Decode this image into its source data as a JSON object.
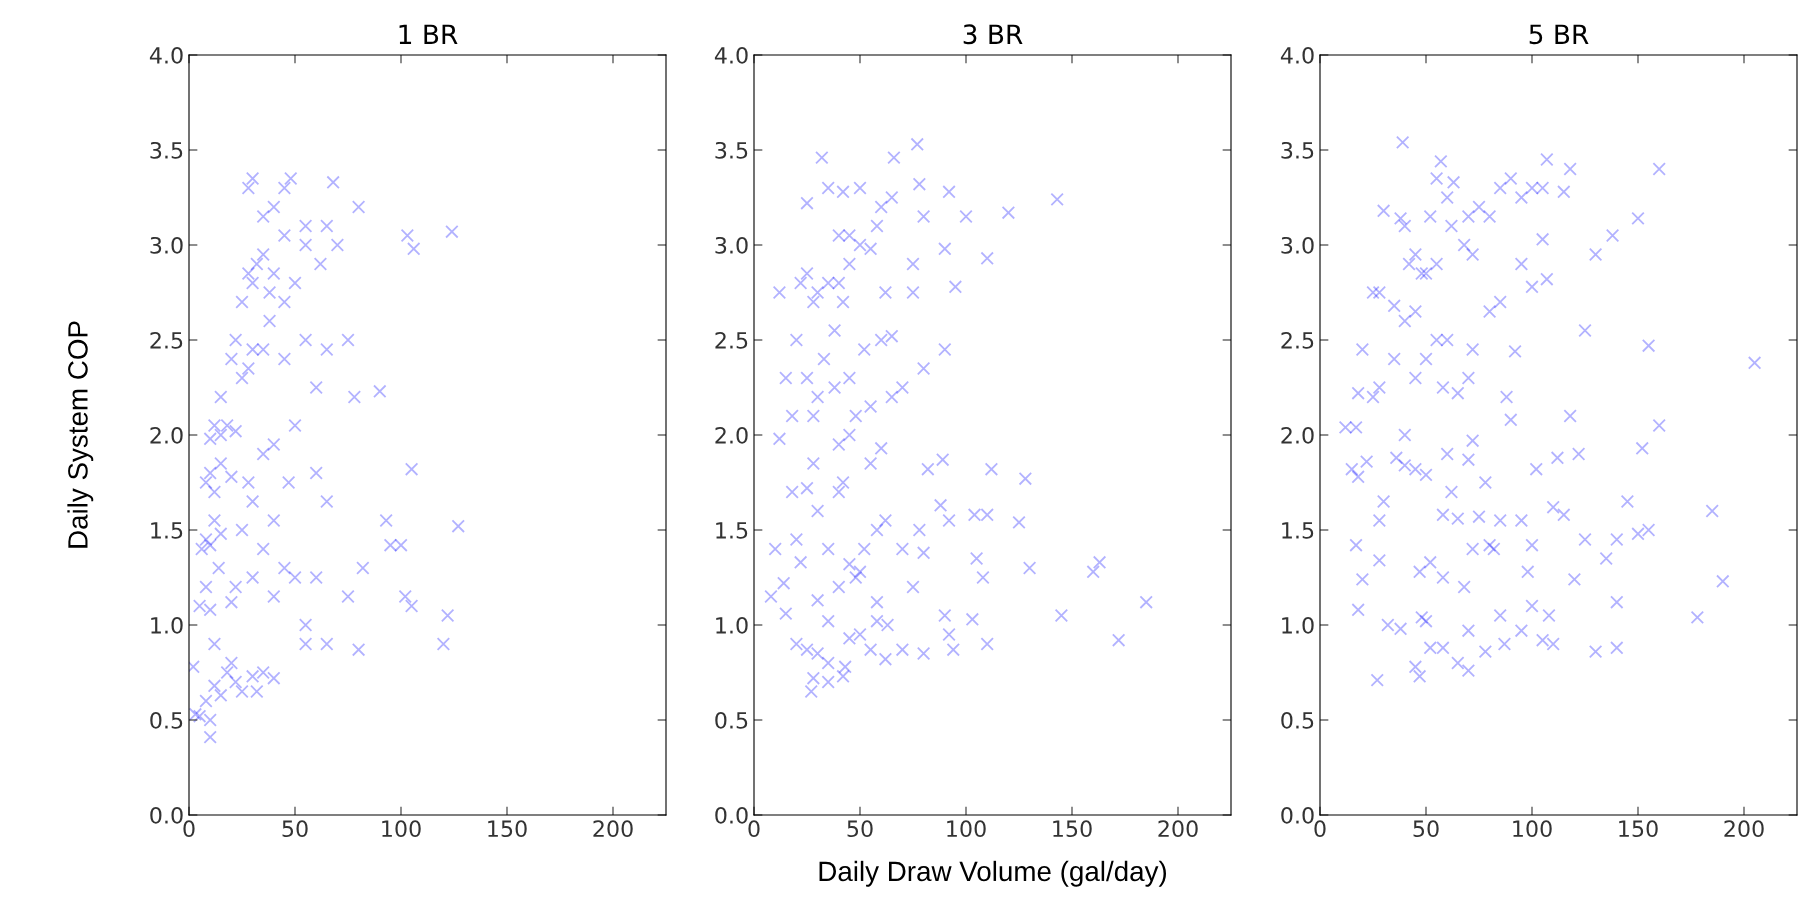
{
  "chart_data": [
    {
      "type": "scatter",
      "title": "1 BR",
      "ylabel": "Daily System COP",
      "xlim": [
        0,
        225
      ],
      "ylim": [
        0,
        4
      ],
      "xticks": [
        0,
        50,
        100,
        150,
        200
      ],
      "yticks": [
        {
          "value": 0,
          "label": "0.0"
        },
        0.5,
        {
          "value": 1,
          "label": "1.0"
        },
        1.5,
        {
          "value": 2,
          "label": "2.0"
        },
        2.5,
        {
          "value": 3,
          "label": "3.0"
        },
        3.5,
        {
          "value": 4,
          "label": "4.0"
        }
      ],
      "marker": "cross",
      "grid": false,
      "legend": false,
      "series": [
        {
          "color": "#0000ff",
          "x": [
            3,
            5,
            2,
            8,
            10,
            10,
            12,
            15,
            18,
            20,
            22,
            25,
            30,
            32,
            35,
            40,
            5,
            8,
            10,
            12,
            14,
            20,
            22,
            30,
            40,
            45,
            50,
            55,
            55,
            60,
            65,
            80,
            82,
            75,
            95,
            102,
            105,
            120,
            122,
            127,
            100,
            93,
            6,
            8,
            10,
            12,
            15,
            25,
            35,
            40,
            60,
            65,
            105,
            90,
            8,
            10,
            12,
            15,
            20,
            28,
            30,
            40,
            47,
            10,
            12,
            15,
            18,
            22,
            35,
            50,
            15,
            20,
            22,
            25,
            28,
            30,
            35,
            38,
            45,
            55,
            65,
            75,
            78,
            60,
            25,
            28,
            30,
            32,
            35,
            38,
            40,
            45,
            50,
            55,
            62,
            70,
            45,
            55,
            65,
            80,
            103,
            106,
            124,
            28,
            30,
            45,
            48,
            68,
            35,
            40
          ],
          "values": [
            0.53,
            0.52,
            0.78,
            0.6,
            0.41,
            0.5,
            0.68,
            0.63,
            0.75,
            0.8,
            0.7,
            0.65,
            0.73,
            0.65,
            0.75,
            0.72,
            1.1,
            1.2,
            1.08,
            0.9,
            1.3,
            1.12,
            1.2,
            1.25,
            1.15,
            1.3,
            1.25,
            1.0,
            0.9,
            1.25,
            0.9,
            0.87,
            1.3,
            1.15,
            1.42,
            1.15,
            1.1,
            0.9,
            1.05,
            1.52,
            1.42,
            1.55,
            1.4,
            1.45,
            1.42,
            1.55,
            1.48,
            1.5,
            1.4,
            1.55,
            1.8,
            1.65,
            1.82,
            2.23,
            1.75,
            1.8,
            1.7,
            1.85,
            1.78,
            1.75,
            1.65,
            1.95,
            1.75,
            1.98,
            2.05,
            2.0,
            2.05,
            2.02,
            1.9,
            2.05,
            2.2,
            2.4,
            2.5,
            2.3,
            2.35,
            2.45,
            2.45,
            2.6,
            2.4,
            2.5,
            2.45,
            2.5,
            2.2,
            2.25,
            2.7,
            2.85,
            2.8,
            2.9,
            2.95,
            2.75,
            2.85,
            2.7,
            2.8,
            3.0,
            2.9,
            3.0,
            3.05,
            3.1,
            3.1,
            3.2,
            3.05,
            2.98,
            3.07,
            3.3,
            3.35,
            3.3,
            3.35,
            3.33,
            3.15,
            3.2
          ]
        }
      ]
    },
    {
      "type": "scatter",
      "title": "3 BR",
      "xlabel": "Daily Draw Volume (gal/day)",
      "xlim": [
        0,
        225
      ],
      "ylim": [
        0,
        4
      ],
      "xticks": [
        0,
        50,
        100,
        150,
        200
      ],
      "yticks": [
        {
          "value": 0,
          "label": "0.0"
        },
        0.5,
        {
          "value": 1,
          "label": "1.0"
        },
        1.5,
        {
          "value": 2,
          "label": "2.0"
        },
        2.5,
        {
          "value": 3,
          "label": "3.0"
        },
        3.5,
        {
          "value": 4,
          "label": "4.0"
        }
      ],
      "marker": "cross",
      "grid": false,
      "legend": false,
      "series": [
        {
          "color": "#0000ff",
          "x": [
            12,
            12,
            10,
            8,
            14,
            15,
            18,
            20,
            22,
            25,
            28,
            30,
            35,
            40,
            42,
            18,
            15,
            20,
            25,
            28,
            30,
            33,
            38,
            45,
            48,
            55,
            65,
            70,
            80,
            90,
            22,
            25,
            28,
            30,
            35,
            38,
            40,
            42,
            45,
            40,
            45,
            50,
            55,
            58,
            60,
            65,
            75,
            80,
            90,
            92,
            100,
            75,
            62,
            60,
            52,
            65,
            25,
            32,
            35,
            42,
            50,
            66,
            77,
            78,
            120,
            143,
            110,
            95,
            40,
            45,
            55,
            60,
            48,
            50,
            52,
            58,
            62,
            70,
            75,
            78,
            80,
            88,
            92,
            82,
            89,
            104,
            110,
            112,
            105,
            108,
            125,
            130,
            128,
            145,
            160,
            163,
            172,
            185,
            110,
            103,
            20,
            25,
            27,
            28,
            30,
            35,
            35,
            42,
            43,
            45,
            50,
            55,
            58,
            62,
            63,
            70,
            80,
            92,
            94,
            90,
            30,
            35,
            40,
            45,
            58
          ],
          "values": [
            2.75,
            1.98,
            1.4,
            1.15,
            1.22,
            1.06,
            1.7,
            1.45,
            1.33,
            1.72,
            1.85,
            1.6,
            1.4,
            1.7,
            1.75,
            2.1,
            2.3,
            2.5,
            2.3,
            2.1,
            2.2,
            2.4,
            2.25,
            2.3,
            2.1,
            2.15,
            2.2,
            2.25,
            2.35,
            2.45,
            2.8,
            2.85,
            2.7,
            2.75,
            2.8,
            2.55,
            2.8,
            2.7,
            2.9,
            3.05,
            3.05,
            3.0,
            2.98,
            3.1,
            3.2,
            3.25,
            2.9,
            3.15,
            2.98,
            3.28,
            3.15,
            2.75,
            2.75,
            2.5,
            2.45,
            2.52,
            3.22,
            3.46,
            3.3,
            3.28,
            3.3,
            3.46,
            3.53,
            3.32,
            3.17,
            3.24,
            2.93,
            2.78,
            1.95,
            2.0,
            1.85,
            1.93,
            1.25,
            1.28,
            1.4,
            1.5,
            1.55,
            1.4,
            1.2,
            1.5,
            1.38,
            1.63,
            1.55,
            1.82,
            1.87,
            1.58,
            1.58,
            1.82,
            1.35,
            1.25,
            1.54,
            1.3,
            1.77,
            1.05,
            1.28,
            1.33,
            0.92,
            1.12,
            0.9,
            1.03,
            0.9,
            0.87,
            0.65,
            0.72,
            0.85,
            0.8,
            0.7,
            0.73,
            0.78,
            0.93,
            0.95,
            0.87,
            1.02,
            0.82,
            1.0,
            0.87,
            0.85,
            0.95,
            0.87,
            1.05,
            1.13,
            1.02,
            1.2,
            1.32,
            1.12
          ]
        }
      ]
    },
    {
      "type": "scatter",
      "title": "5 BR",
      "xlim": [
        0,
        225
      ],
      "ylim": [
        0,
        4
      ],
      "xticks": [
        0,
        50,
        100,
        150,
        200
      ],
      "yticks": [
        {
          "value": 0,
          "label": "0.0"
        },
        0.5,
        {
          "value": 1,
          "label": "1.0"
        },
        1.5,
        {
          "value": 2,
          "label": "2.0"
        },
        2.5,
        {
          "value": 3,
          "label": "3.0"
        },
        3.5,
        {
          "value": 4,
          "label": "4.0"
        }
      ],
      "marker": "cross",
      "grid": false,
      "legend": false,
      "series": [
        {
          "color": "#0000ff",
          "x": [
            12,
            17,
            15,
            18,
            17,
            18,
            20,
            22,
            18,
            20,
            25,
            25,
            28,
            28,
            28,
            28,
            27,
            30,
            32,
            36,
            38,
            40,
            40,
            30,
            35,
            38,
            40,
            42,
            45,
            45,
            48,
            50,
            52,
            55,
            55,
            57,
            60,
            62,
            63,
            68,
            70,
            72,
            75,
            80,
            85,
            90,
            95,
            100,
            105,
            107,
            118,
            115,
            39,
            35,
            40,
            45,
            50,
            55,
            58,
            60,
            65,
            70,
            72,
            80,
            85,
            92,
            88,
            90,
            95,
            100,
            105,
            107,
            125,
            130,
            138,
            150,
            160,
            155,
            160,
            205,
            45,
            50,
            60,
            62,
            70,
            72,
            78,
            58,
            65,
            75,
            80,
            82,
            85,
            95,
            100,
            102,
            110,
            112,
            115,
            118,
            122,
            125,
            120,
            135,
            140,
            150,
            152,
            155,
            145,
            185,
            190,
            178,
            140,
            45,
            47,
            48,
            50,
            52,
            58,
            65,
            70,
            70,
            78,
            85,
            87,
            95,
            100,
            105,
            110,
            108,
            130,
            140,
            47,
            52,
            58,
            68,
            72,
            98
          ],
          "values": [
            2.04,
            2.04,
            1.82,
            1.78,
            1.42,
            1.08,
            1.24,
            1.86,
            2.22,
            2.45,
            2.2,
            2.75,
            2.25,
            2.75,
            1.55,
            1.34,
            0.71,
            1.65,
            1.0,
            1.88,
            0.98,
            1.84,
            2.0,
            3.18,
            2.68,
            3.14,
            3.1,
            2.9,
            2.95,
            2.65,
            2.85,
            2.85,
            3.15,
            2.9,
            3.35,
            3.44,
            3.25,
            3.1,
            3.33,
            3.0,
            3.15,
            2.95,
            3.2,
            3.15,
            3.3,
            3.35,
            3.25,
            3.3,
            3.3,
            3.45,
            3.4,
            3.28,
            3.54,
            2.4,
            2.6,
            2.3,
            2.4,
            2.5,
            2.25,
            2.5,
            2.22,
            2.3,
            2.45,
            2.65,
            2.7,
            2.44,
            2.2,
            2.08,
            2.9,
            2.78,
            3.03,
            2.82,
            2.55,
            2.95,
            3.05,
            3.14,
            3.4,
            2.47,
            2.05,
            2.38,
            1.82,
            1.79,
            1.9,
            1.7,
            1.87,
            1.97,
            1.75,
            1.58,
            1.56,
            1.57,
            1.42,
            1.4,
            1.55,
            1.55,
            1.42,
            1.82,
            1.62,
            1.88,
            1.58,
            2.1,
            1.9,
            1.45,
            1.24,
            1.35,
            1.45,
            1.48,
            1.93,
            1.5,
            1.65,
            1.6,
            1.23,
            1.04,
            1.12,
            0.78,
            0.73,
            1.04,
            1.02,
            0.88,
            0.88,
            0.8,
            0.97,
            0.76,
            0.86,
            1.05,
            0.9,
            0.97,
            1.1,
            0.92,
            0.9,
            1.05,
            0.86,
            0.88,
            1.28,
            1.33,
            1.25,
            1.2,
            1.4,
            1.28
          ]
        }
      ]
    }
  ]
}
